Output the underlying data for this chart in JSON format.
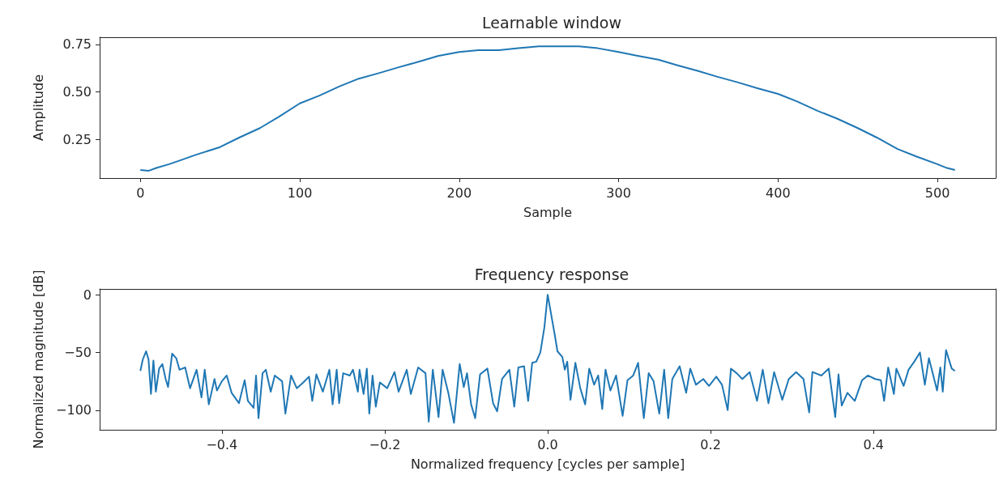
{
  "chart_data": [
    {
      "type": "line",
      "title": "Learnable window",
      "xlabel": "Sample",
      "ylabel": "Amplitude",
      "xlim": [
        -25.55,
        536.55
      ],
      "ylim": [
        0.047,
        0.788
      ],
      "xticks": [
        0,
        100,
        200,
        300,
        400,
        500
      ],
      "yticks": [
        {
          "value": 0.25,
          "label": "0.25"
        },
        {
          "value": 0.5,
          "label": "0.50"
        },
        {
          "value": 0.75,
          "label": "0.75"
        }
      ],
      "grid": false,
      "marker": "none",
      "line_style": "solid",
      "x": [
        0,
        5,
        10,
        18,
        25,
        35,
        50,
        62,
        75,
        87,
        100,
        112,
        125,
        137,
        150,
        162,
        175,
        187,
        200,
        212,
        225,
        237,
        250,
        262,
        275,
        287,
        300,
        312,
        325,
        337,
        350,
        362,
        375,
        387,
        400,
        412,
        425,
        437,
        450,
        462,
        475,
        487,
        500,
        506,
        511
      ],
      "series": [
        {
          "color": "#1f77b4",
          "values": [
            0.09,
            0.085,
            0.1,
            0.12,
            0.14,
            0.17,
            0.21,
            0.26,
            0.31,
            0.37,
            0.44,
            0.48,
            0.53,
            0.57,
            0.6,
            0.63,
            0.66,
            0.69,
            0.71,
            0.72,
            0.72,
            0.73,
            0.74,
            0.74,
            0.74,
            0.73,
            0.71,
            0.69,
            0.67,
            0.64,
            0.61,
            0.58,
            0.55,
            0.52,
            0.49,
            0.45,
            0.4,
            0.36,
            0.31,
            0.26,
            0.2,
            0.16,
            0.12,
            0.1,
            0.09
          ]
        }
      ]
    },
    {
      "type": "line",
      "title": "Frequency response",
      "xlabel": "Normalized frequency [cycles per sample]",
      "ylabel": "Normalized magnitude [dB]",
      "xlim": [
        -0.55,
        0.55
      ],
      "ylim": [
        -117,
        5
      ],
      "xticks": [
        {
          "value": -0.4,
          "label": "−0.4"
        },
        {
          "value": -0.2,
          "label": "−0.2"
        },
        {
          "value": 0,
          "label": "0.0"
        },
        {
          "value": 0.2,
          "label": "0.2"
        },
        {
          "value": 0.4,
          "label": "0.4"
        }
      ],
      "yticks": [
        0,
        {
          "value": -50,
          "label": "−50"
        },
        {
          "value": -100,
          "label": "−100"
        }
      ],
      "grid": false,
      "marker": "none",
      "line_style": "solid",
      "x": [
        -0.5,
        -0.497,
        -0.493,
        -0.49,
        -0.487,
        -0.484,
        -0.481,
        -0.477,
        -0.473,
        -0.469,
        -0.466,
        -0.461,
        -0.456,
        -0.452,
        -0.445,
        -0.439,
        -0.431,
        -0.425,
        -0.421,
        -0.416,
        -0.409,
        -0.406,
        -0.4,
        -0.394,
        -0.388,
        -0.379,
        -0.372,
        -0.368,
        -0.361,
        -0.358,
        -0.355,
        -0.35,
        -0.346,
        -0.34,
        -0.335,
        -0.326,
        -0.322,
        -0.315,
        -0.308,
        -0.3,
        -0.293,
        -0.289,
        -0.284,
        -0.276,
        -0.268,
        -0.264,
        -0.259,
        -0.256,
        -0.251,
        -0.243,
        -0.239,
        -0.233,
        -0.231,
        -0.226,
        -0.222,
        -0.219,
        -0.215,
        -0.211,
        -0.206,
        -0.197,
        -0.188,
        -0.183,
        -0.173,
        -0.168,
        -0.159,
        -0.15,
        -0.146,
        -0.141,
        -0.134,
        -0.129,
        -0.122,
        -0.115,
        -0.108,
        -0.103,
        -0.099,
        -0.094,
        -0.089,
        -0.083,
        -0.074,
        -0.067,
        -0.062,
        -0.056,
        -0.047,
        -0.041,
        -0.036,
        -0.029,
        -0.024,
        -0.019,
        -0.014,
        -0.009,
        -0.004,
        0,
        0.009,
        0.012,
        0.018,
        0.021,
        0.024,
        0.028,
        0.034,
        0.04,
        0.046,
        0.051,
        0.057,
        0.062,
        0.067,
        0.071,
        0.077,
        0.084,
        0.092,
        0.098,
        0.105,
        0.111,
        0.118,
        0.124,
        0.13,
        0.137,
        0.143,
        0.148,
        0.153,
        0.162,
        0.17,
        0.175,
        0.182,
        0.191,
        0.198,
        0.207,
        0.214,
        0.221,
        0.225,
        0.232,
        0.239,
        0.248,
        0.257,
        0.264,
        0.271,
        0.278,
        0.288,
        0.296,
        0.305,
        0.314,
        0.321,
        0.325,
        0.336,
        0.345,
        0.353,
        0.357,
        0.361,
        0.368,
        0.377,
        0.386,
        0.393,
        0.402,
        0.409,
        0.413,
        0.418,
        0.425,
        0.428,
        0.437,
        0.443,
        0.45,
        0.457,
        0.463,
        0.468,
        0.478,
        0.482,
        0.485,
        0.489,
        0.496,
        0.5
      ],
      "series": [
        {
          "color": "#1f77b4",
          "values": [
            -66,
            -56,
            -49,
            -56,
            -86,
            -57,
            -84,
            -64,
            -60,
            -73,
            -80,
            -51,
            -55,
            -65,
            -63,
            -81,
            -65,
            -89,
            -65,
            -95,
            -73,
            -83,
            -75,
            -70,
            -85,
            -94,
            -74,
            -92,
            -98,
            -70,
            -107,
            -68,
            -65,
            -84,
            -70,
            -75,
            -103,
            -70,
            -81,
            -76,
            -71,
            -92,
            -69,
            -84,
            -65,
            -95,
            -65,
            -94,
            -68,
            -70,
            -65,
            -84,
            -65,
            -86,
            -64,
            -103,
            -70,
            -97,
            -76,
            -81,
            -67,
            -84,
            -65,
            -86,
            -63,
            -68,
            -110,
            -65,
            -106,
            -65,
            -85,
            -111,
            -60,
            -80,
            -68,
            -95,
            -107,
            -69,
            -64,
            -94,
            -101,
            -73,
            -65,
            -97,
            -63,
            -62,
            -92,
            -59,
            -58,
            -50,
            -28,
            0,
            -36,
            -49,
            -54,
            -65,
            -58,
            -91,
            -59,
            -81,
            -95,
            -64,
            -78,
            -70,
            -99,
            -65,
            -83,
            -70,
            -105,
            -74,
            -70,
            -59,
            -107,
            -68,
            -75,
            -103,
            -65,
            -107,
            -73,
            -62,
            -85,
            -64,
            -78,
            -73,
            -79,
            -71,
            -78,
            -100,
            -64,
            -68,
            -73,
            -67,
            -92,
            -65,
            -94,
            -67,
            -91,
            -73,
            -67,
            -73,
            -102,
            -67,
            -70,
            -64,
            -106,
            -69,
            -96,
            -85,
            -92,
            -74,
            -70,
            -73,
            -74,
            -92,
            -63,
            -86,
            -64,
            -79,
            -65,
            -58,
            -50,
            -78,
            -55,
            -83,
            -63,
            -84,
            -48,
            -64,
            -66
          ]
        }
      ]
    }
  ]
}
